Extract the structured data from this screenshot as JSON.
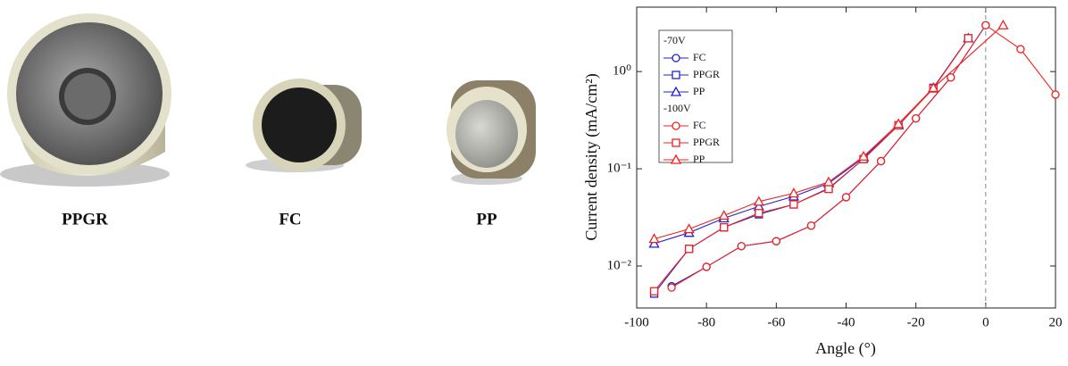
{
  "photos": {
    "labels": [
      "PPGR",
      "FC",
      "PP"
    ]
  },
  "chart_data": {
    "type": "line",
    "xlabel": "Angle (°)",
    "ylabel": "Current density (mA/cm²)",
    "xlim": [
      -100,
      20
    ],
    "xticks": [
      -100,
      -80,
      -60,
      -40,
      -20,
      0,
      20
    ],
    "ylim": [
      0.0037,
      4.6
    ],
    "ylog": true,
    "yticks": [
      {
        "value": 0.01,
        "label": "10⁻²"
      },
      {
        "value": 0.1,
        "label": "10⁻¹"
      },
      {
        "value": 1,
        "label": "10⁰"
      }
    ],
    "reference_line": 0,
    "legend_titles": [
      "-70V",
      "-100V"
    ],
    "series": [
      {
        "name": "FC",
        "color": "#2222cc",
        "marker": "circle",
        "x": [
          -90,
          -80,
          -70,
          -60,
          -50,
          -40,
          -30,
          -20,
          -10,
          0
        ],
        "values": [
          0.0062,
          0.0098,
          0.016,
          0.018,
          0.026,
          0.051,
          0.12,
          0.33,
          0.87,
          3.0
        ]
      },
      {
        "name": "PPGR",
        "color": "#2222cc",
        "marker": "square",
        "x": [
          -95,
          -85,
          -75,
          -65,
          -55,
          -45,
          -35,
          -25,
          -15,
          -5
        ],
        "values": [
          0.0052,
          0.015,
          0.025,
          0.034,
          0.043,
          0.063,
          0.126,
          0.28,
          0.68,
          2.2
        ]
      },
      {
        "name": "PP",
        "color": "#2222cc",
        "marker": "triangle",
        "x": [
          -95,
          -85,
          -75,
          -65,
          -55,
          -45,
          -35,
          -25,
          -15,
          -5
        ],
        "values": [
          0.017,
          0.022,
          0.031,
          0.041,
          0.052,
          0.071,
          0.13,
          0.28,
          0.68,
          2.2
        ]
      },
      {
        "name": "FC",
        "color": "#ee2222",
        "marker": "circle",
        "x": [
          -90,
          -80,
          -70,
          -60,
          -50,
          -40,
          -30,
          -20,
          -10,
          0,
          10,
          20
        ],
        "values": [
          0.006,
          0.0098,
          0.016,
          0.018,
          0.026,
          0.051,
          0.12,
          0.33,
          0.87,
          3.0,
          1.7,
          0.58
        ]
      },
      {
        "name": "PPGR",
        "color": "#ee2222",
        "marker": "square",
        "x": [
          -95,
          -85,
          -75,
          -65,
          -55,
          -45,
          -35,
          -25,
          -15,
          -5
        ],
        "values": [
          0.0055,
          0.015,
          0.025,
          0.035,
          0.043,
          0.062,
          0.126,
          0.28,
          0.67,
          2.2
        ]
      },
      {
        "name": "PP",
        "color": "#ee2222",
        "marker": "triangle",
        "x": [
          -95,
          -85,
          -75,
          -65,
          -55,
          -45,
          -35,
          -25,
          -15,
          5
        ],
        "values": [
          0.019,
          0.024,
          0.033,
          0.046,
          0.056,
          0.073,
          0.134,
          0.29,
          0.68,
          3.0
        ]
      }
    ]
  }
}
